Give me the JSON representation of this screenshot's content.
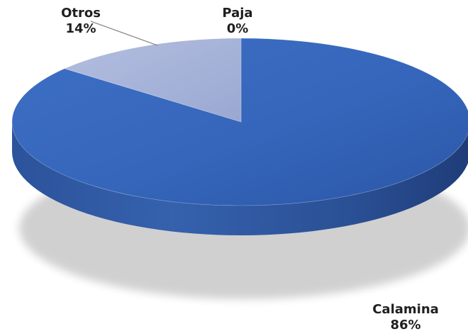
{
  "chart_data": {
    "type": "pie",
    "style": "3d",
    "categories": [
      "Calamina",
      "Otros",
      "Paja"
    ],
    "values": [
      86,
      14,
      0
    ],
    "labels": [
      "86%",
      "14%",
      "0%"
    ],
    "colors": [
      "#4472c4",
      "#a5b1d8",
      "#8fa8d8"
    ],
    "title": ""
  }
}
